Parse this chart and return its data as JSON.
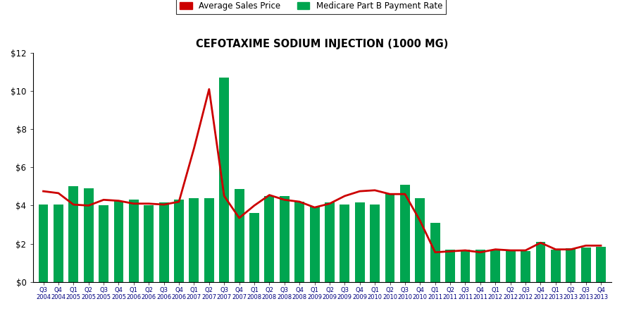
{
  "title": "CEFOTAXIME SODIUM INJECTION (1000 MG)",
  "legend_labels": [
    "Average Sales Price",
    "Medicare Part B Payment Rate"
  ],
  "line_color": "#CC0000",
  "bar_color": "#00A550",
  "categories": [
    "Q3\n2004",
    "Q4\n2004",
    "Q1\n2005",
    "Q2\n2005",
    "Q3\n2005",
    "Q4\n2005",
    "Q1\n2006",
    "Q2\n2006",
    "Q3\n2006",
    "Q4\n2006",
    "Q1\n2007",
    "Q2\n2007",
    "Q3\n2007",
    "Q4\n2007",
    "Q1\n2008",
    "Q2\n2008",
    "Q3\n2008",
    "Q4\n2008",
    "Q1\n2009",
    "Q2\n2009",
    "Q3\n2009",
    "Q4\n2009",
    "Q1\n2010",
    "Q2\n2010",
    "Q3\n2010",
    "Q4\n2010",
    "Q1\n2011",
    "Q2\n2011",
    "Q3\n2011",
    "Q4\n2011",
    "Q1\n2012",
    "Q2\n2012",
    "Q3\n2012",
    "Q4\n2012",
    "Q1\n2013",
    "Q2\n2013",
    "Q3\n2013",
    "Q4\n2013"
  ],
  "asp_values": [
    4.75,
    4.65,
    4.05,
    4.0,
    4.3,
    4.25,
    4.1,
    4.1,
    4.05,
    4.2,
    7.0,
    10.1,
    4.5,
    3.35,
    4.0,
    4.55,
    4.3,
    4.2,
    3.9,
    4.1,
    4.5,
    4.75,
    4.8,
    4.6,
    4.6,
    3.2,
    1.55,
    1.6,
    1.65,
    1.55,
    1.7,
    1.65,
    1.65,
    2.05,
    1.7,
    1.7,
    1.9,
    1.9
  ],
  "medicare_values": [
    4.05,
    4.05,
    5.0,
    4.9,
    4.0,
    4.25,
    4.3,
    4.0,
    4.15,
    4.3,
    4.4,
    4.4,
    10.7,
    4.85,
    3.6,
    4.5,
    4.5,
    4.2,
    3.95,
    4.15,
    4.05,
    4.15,
    4.05,
    4.65,
    5.1,
    4.4,
    3.1,
    1.7,
    1.7,
    1.7,
    1.65,
    1.65,
    1.6,
    2.1,
    1.7,
    1.75,
    1.8,
    1.85
  ],
  "ylim": [
    0,
    12
  ],
  "yticks": [
    0,
    2,
    4,
    6,
    8,
    10,
    12
  ],
  "ytick_labels": [
    "$0",
    "$2",
    "$4",
    "$6",
    "$8",
    "$10",
    "$12"
  ],
  "background_color": "#FFFFFF",
  "line_width": 2.0,
  "figsize": [
    8.83,
    4.41
  ],
  "dpi": 100
}
